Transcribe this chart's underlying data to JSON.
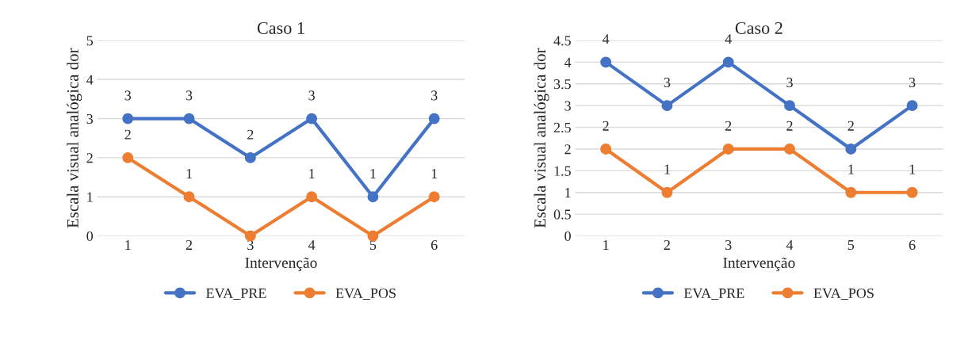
{
  "chart_data": [
    {
      "type": "line",
      "title": "Caso 1",
      "xlabel": "Intervenção",
      "ylabel": "Escala visual analógica dor",
      "categories": [
        "1",
        "2",
        "3",
        "4",
        "5",
        "6"
      ],
      "series": [
        {
          "name": "EVA_PRE",
          "color": "#4472c4",
          "values": [
            3,
            3,
            2,
            3,
            1,
            3
          ],
          "value_labels": [
            "3",
            "3",
            "2",
            "3",
            "1",
            "3"
          ]
        },
        {
          "name": "EVA_POS",
          "color": "#ed7d31",
          "values": [
            2,
            1,
            0,
            1,
            0,
            1
          ],
          "value_labels": [
            "2",
            "1",
            null,
            "1",
            null,
            "1"
          ]
        }
      ],
      "ylim": [
        0,
        5
      ],
      "yticks": [
        0,
        1,
        2,
        3,
        4,
        5
      ],
      "grid": "y",
      "legend": "bottom",
      "marker": "circle",
      "line_style": "solid"
    },
    {
      "type": "line",
      "title": "Caso 2",
      "xlabel": "Intervenção",
      "ylabel": "Escala visual analógica dor",
      "categories": [
        "1",
        "2",
        "3",
        "4",
        "5",
        "6"
      ],
      "series": [
        {
          "name": "EVA_PRE",
          "color": "#4472c4",
          "values": [
            4,
            3,
            4,
            3,
            2,
            3
          ]
        },
        {
          "name": "EVA_POS",
          "color": "#ed7d31",
          "values": [
            2,
            1,
            2,
            2,
            1,
            1
          ]
        }
      ],
      "ylim": [
        0,
        4.5
      ],
      "yticks": [
        0,
        0.5,
        1,
        1.5,
        2,
        2.5,
        3,
        3.5,
        4,
        4.5
      ],
      "grid": "y",
      "legend": "bottom",
      "marker": "circle",
      "line_style": "solid",
      "data_labels": true
    }
  ]
}
